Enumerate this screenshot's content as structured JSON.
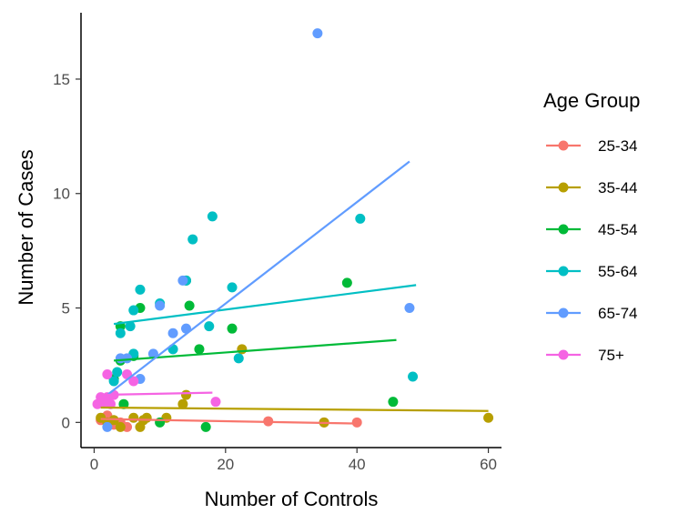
{
  "chart_data": {
    "type": "scatter",
    "title": "",
    "xlabel": "Number of Controls",
    "ylabel": "Number of Cases",
    "xlim": [
      -2,
      62
    ],
    "ylim": [
      -1.1,
      17.9
    ],
    "x_ticks": [
      0,
      20,
      40,
      60
    ],
    "y_ticks": [
      0,
      5,
      10,
      15
    ],
    "grid": false,
    "legend_title": "Age Group",
    "legend_position": "right",
    "series": [
      {
        "name": "25-34",
        "color": "#F8766D",
        "points": [
          [
            1,
            0.1
          ],
          [
            1.5,
            0.2
          ],
          [
            2,
            0.3
          ],
          [
            3,
            -0.1
          ],
          [
            4,
            0.0
          ],
          [
            5,
            -0.2
          ],
          [
            26.5,
            0.05
          ],
          [
            35,
            0.0
          ],
          [
            40,
            0.0
          ]
        ],
        "trend": [
          [
            1,
            0.15
          ],
          [
            40,
            -0.05
          ]
        ]
      },
      {
        "name": "35-44",
        "color": "#B79F00",
        "points": [
          [
            1,
            0.2
          ],
          [
            2,
            0.0
          ],
          [
            3,
            0.1
          ],
          [
            4,
            -0.2
          ],
          [
            6,
            0.2
          ],
          [
            7,
            -0.2
          ],
          [
            7.5,
            0.1
          ],
          [
            8,
            0.2
          ],
          [
            11,
            0.2
          ],
          [
            13.5,
            0.8
          ],
          [
            14,
            1.2
          ],
          [
            22.5,
            3.2
          ],
          [
            35,
            0.0
          ],
          [
            60,
            0.2
          ]
        ],
        "trend": [
          [
            1,
            0.65
          ],
          [
            60,
            0.5
          ]
        ]
      },
      {
        "name": "45-54",
        "color": "#00BA38",
        "points": [
          [
            3,
            1.9
          ],
          [
            4,
            2.7
          ],
          [
            4,
            4.2
          ],
          [
            4.5,
            0.8
          ],
          [
            6,
            2.9
          ],
          [
            7,
            5.0
          ],
          [
            10,
            0.0
          ],
          [
            14,
            6.2
          ],
          [
            14.5,
            5.1
          ],
          [
            16,
            3.2
          ],
          [
            17,
            -0.2
          ],
          [
            21,
            4.1
          ],
          [
            38.5,
            6.1
          ],
          [
            45.5,
            0.9
          ]
        ],
        "trend": [
          [
            3,
            2.7
          ],
          [
            46,
            3.6
          ]
        ]
      },
      {
        "name": "55-64",
        "color": "#00BFC4",
        "points": [
          [
            3,
            1.8
          ],
          [
            3.5,
            2.2
          ],
          [
            4,
            3.9
          ],
          [
            5.5,
            4.2
          ],
          [
            6,
            3.0
          ],
          [
            6,
            4.9
          ],
          [
            7,
            5.8
          ],
          [
            10,
            5.2
          ],
          [
            12,
            3.2
          ],
          [
            14,
            6.2
          ],
          [
            15,
            8.0
          ],
          [
            17.5,
            4.2
          ],
          [
            18,
            9.0
          ],
          [
            21,
            5.9
          ],
          [
            22,
            2.8
          ],
          [
            40.5,
            8.9
          ],
          [
            48.5,
            2.0
          ]
        ],
        "trend": [
          [
            3,
            4.3
          ],
          [
            49,
            6.0
          ]
        ]
      },
      {
        "name": "65-74",
        "color": "#619CFF",
        "points": [
          [
            2,
            -0.2
          ],
          [
            4,
            2.8
          ],
          [
            5,
            2.8
          ],
          [
            7,
            1.9
          ],
          [
            9,
            3.0
          ],
          [
            10,
            5.1
          ],
          [
            12,
            3.9
          ],
          [
            13.5,
            6.2
          ],
          [
            14,
            4.1
          ],
          [
            34,
            17.0
          ],
          [
            48,
            5.0
          ]
        ],
        "trend": [
          [
            2,
            1.2
          ],
          [
            48,
            11.4
          ]
        ]
      },
      {
        "name": "75+",
        "color": "#F564E3",
        "points": [
          [
            0.5,
            0.8
          ],
          [
            1,
            1.1
          ],
          [
            1.5,
            0.9
          ],
          [
            2,
            1.1
          ],
          [
            2,
            2.1
          ],
          [
            2.5,
            0.8
          ],
          [
            3,
            1.2
          ],
          [
            5,
            2.1
          ],
          [
            6,
            1.8
          ],
          [
            18.5,
            0.9
          ]
        ],
        "trend": [
          [
            0.5,
            1.2
          ],
          [
            18,
            1.3
          ]
        ]
      }
    ]
  }
}
